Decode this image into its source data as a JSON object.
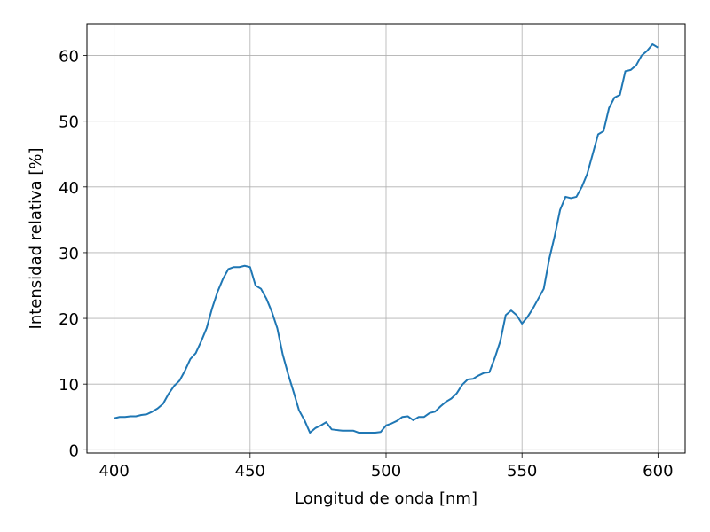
{
  "chart_data": {
    "type": "line",
    "x_label": "Longitud de onda [nm]",
    "y_label": "Intensidad relativa [%]",
    "x": [
      400,
      402,
      404,
      406,
      408,
      410,
      412,
      414,
      416,
      418,
      420,
      422,
      424,
      426,
      428,
      430,
      432,
      434,
      436,
      438,
      440,
      442,
      444,
      446,
      448,
      450,
      452,
      454,
      456,
      458,
      460,
      462,
      464,
      466,
      468,
      470,
      472,
      474,
      476,
      478,
      480,
      482,
      484,
      486,
      488,
      490,
      492,
      494,
      496,
      498,
      500,
      502,
      504,
      506,
      508,
      510,
      512,
      514,
      516,
      518,
      520,
      522,
      524,
      526,
      528,
      530,
      532,
      534,
      536,
      538,
      540,
      542,
      544,
      546,
      548,
      550,
      552,
      554,
      556,
      558,
      560,
      562,
      564,
      566,
      568,
      570,
      572,
      574,
      576,
      578,
      580,
      582,
      584,
      586,
      588,
      590,
      592,
      594,
      596,
      598,
      600
    ],
    "series": [
      {
        "color": "#1f77b4",
        "values": [
          4.8,
          5.0,
          5.0,
          5.1,
          5.1,
          5.3,
          5.4,
          5.8,
          6.3,
          7.0,
          8.5,
          9.7,
          10.5,
          12.0,
          13.8,
          14.7,
          16.5,
          18.5,
          21.5,
          24.0,
          26.0,
          27.5,
          27.8,
          27.8,
          28.0,
          27.8,
          25.0,
          24.5,
          23.0,
          21.0,
          18.5,
          14.5,
          11.5,
          8.8,
          6.0,
          4.5,
          2.6,
          3.3,
          3.7,
          4.2,
          3.1,
          3.0,
          2.9,
          2.9,
          2.9,
          2.6,
          2.6,
          2.6,
          2.6,
          2.7,
          3.7,
          4.0,
          4.4,
          5.0,
          5.1,
          4.5,
          5.0,
          5.0,
          5.6,
          5.8,
          6.6,
          7.3,
          7.8,
          8.6,
          9.9,
          10.7,
          10.8,
          11.3,
          11.7,
          11.8,
          14.0,
          16.5,
          20.5,
          21.2,
          20.5,
          19.2,
          20.2,
          21.5,
          23.0,
          24.5,
          29.0,
          32.5,
          36.5,
          38.5,
          38.3,
          38.5,
          40.0,
          42.0,
          45.0,
          48.0,
          48.5,
          52.0,
          53.6,
          54.0,
          57.6,
          57.8,
          58.5,
          60.0,
          60.7,
          61.7,
          61.2
        ]
      }
    ],
    "xlim": [
      390,
      610
    ],
    "ylim": [
      -0.5,
      64.8
    ],
    "xticks": [
      400,
      450,
      500,
      550,
      600
    ],
    "yticks": [
      0,
      10,
      20,
      30,
      40,
      50,
      60
    ],
    "grid": true
  }
}
